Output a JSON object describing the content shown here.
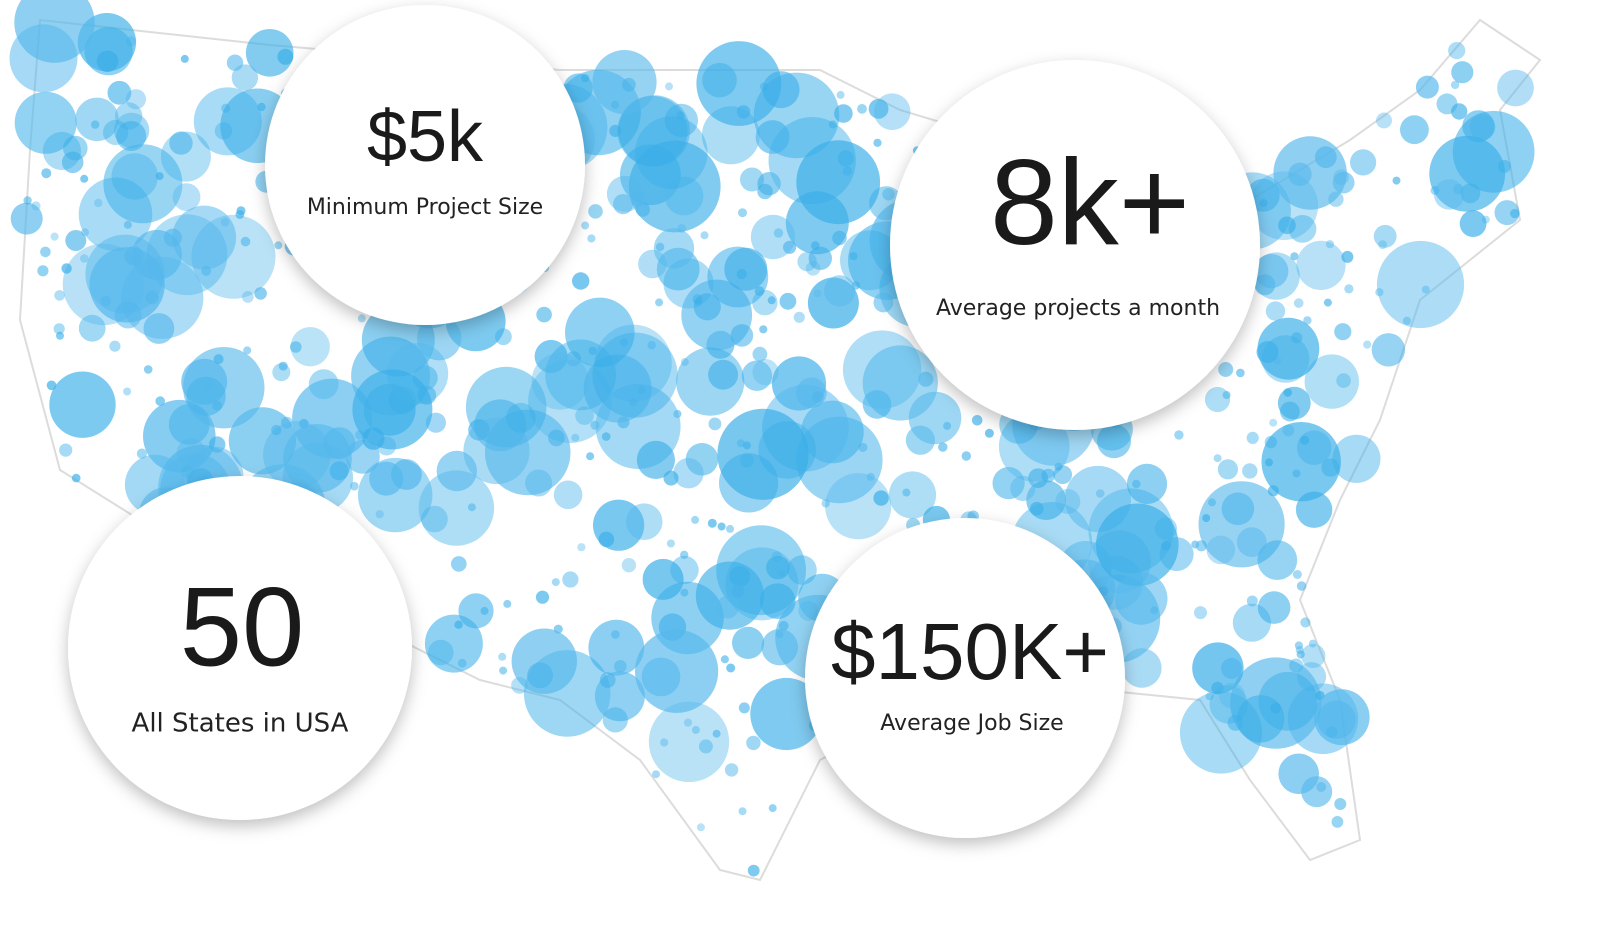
{
  "stats": [
    {
      "value": "$5k",
      "label": "Minimum Project Size"
    },
    {
      "value": "8k+",
      "label": "Average projects a month"
    },
    {
      "value": "50",
      "label": "All States in USA"
    },
    {
      "value": "$150K+",
      "label": "Average Job Size"
    }
  ]
}
